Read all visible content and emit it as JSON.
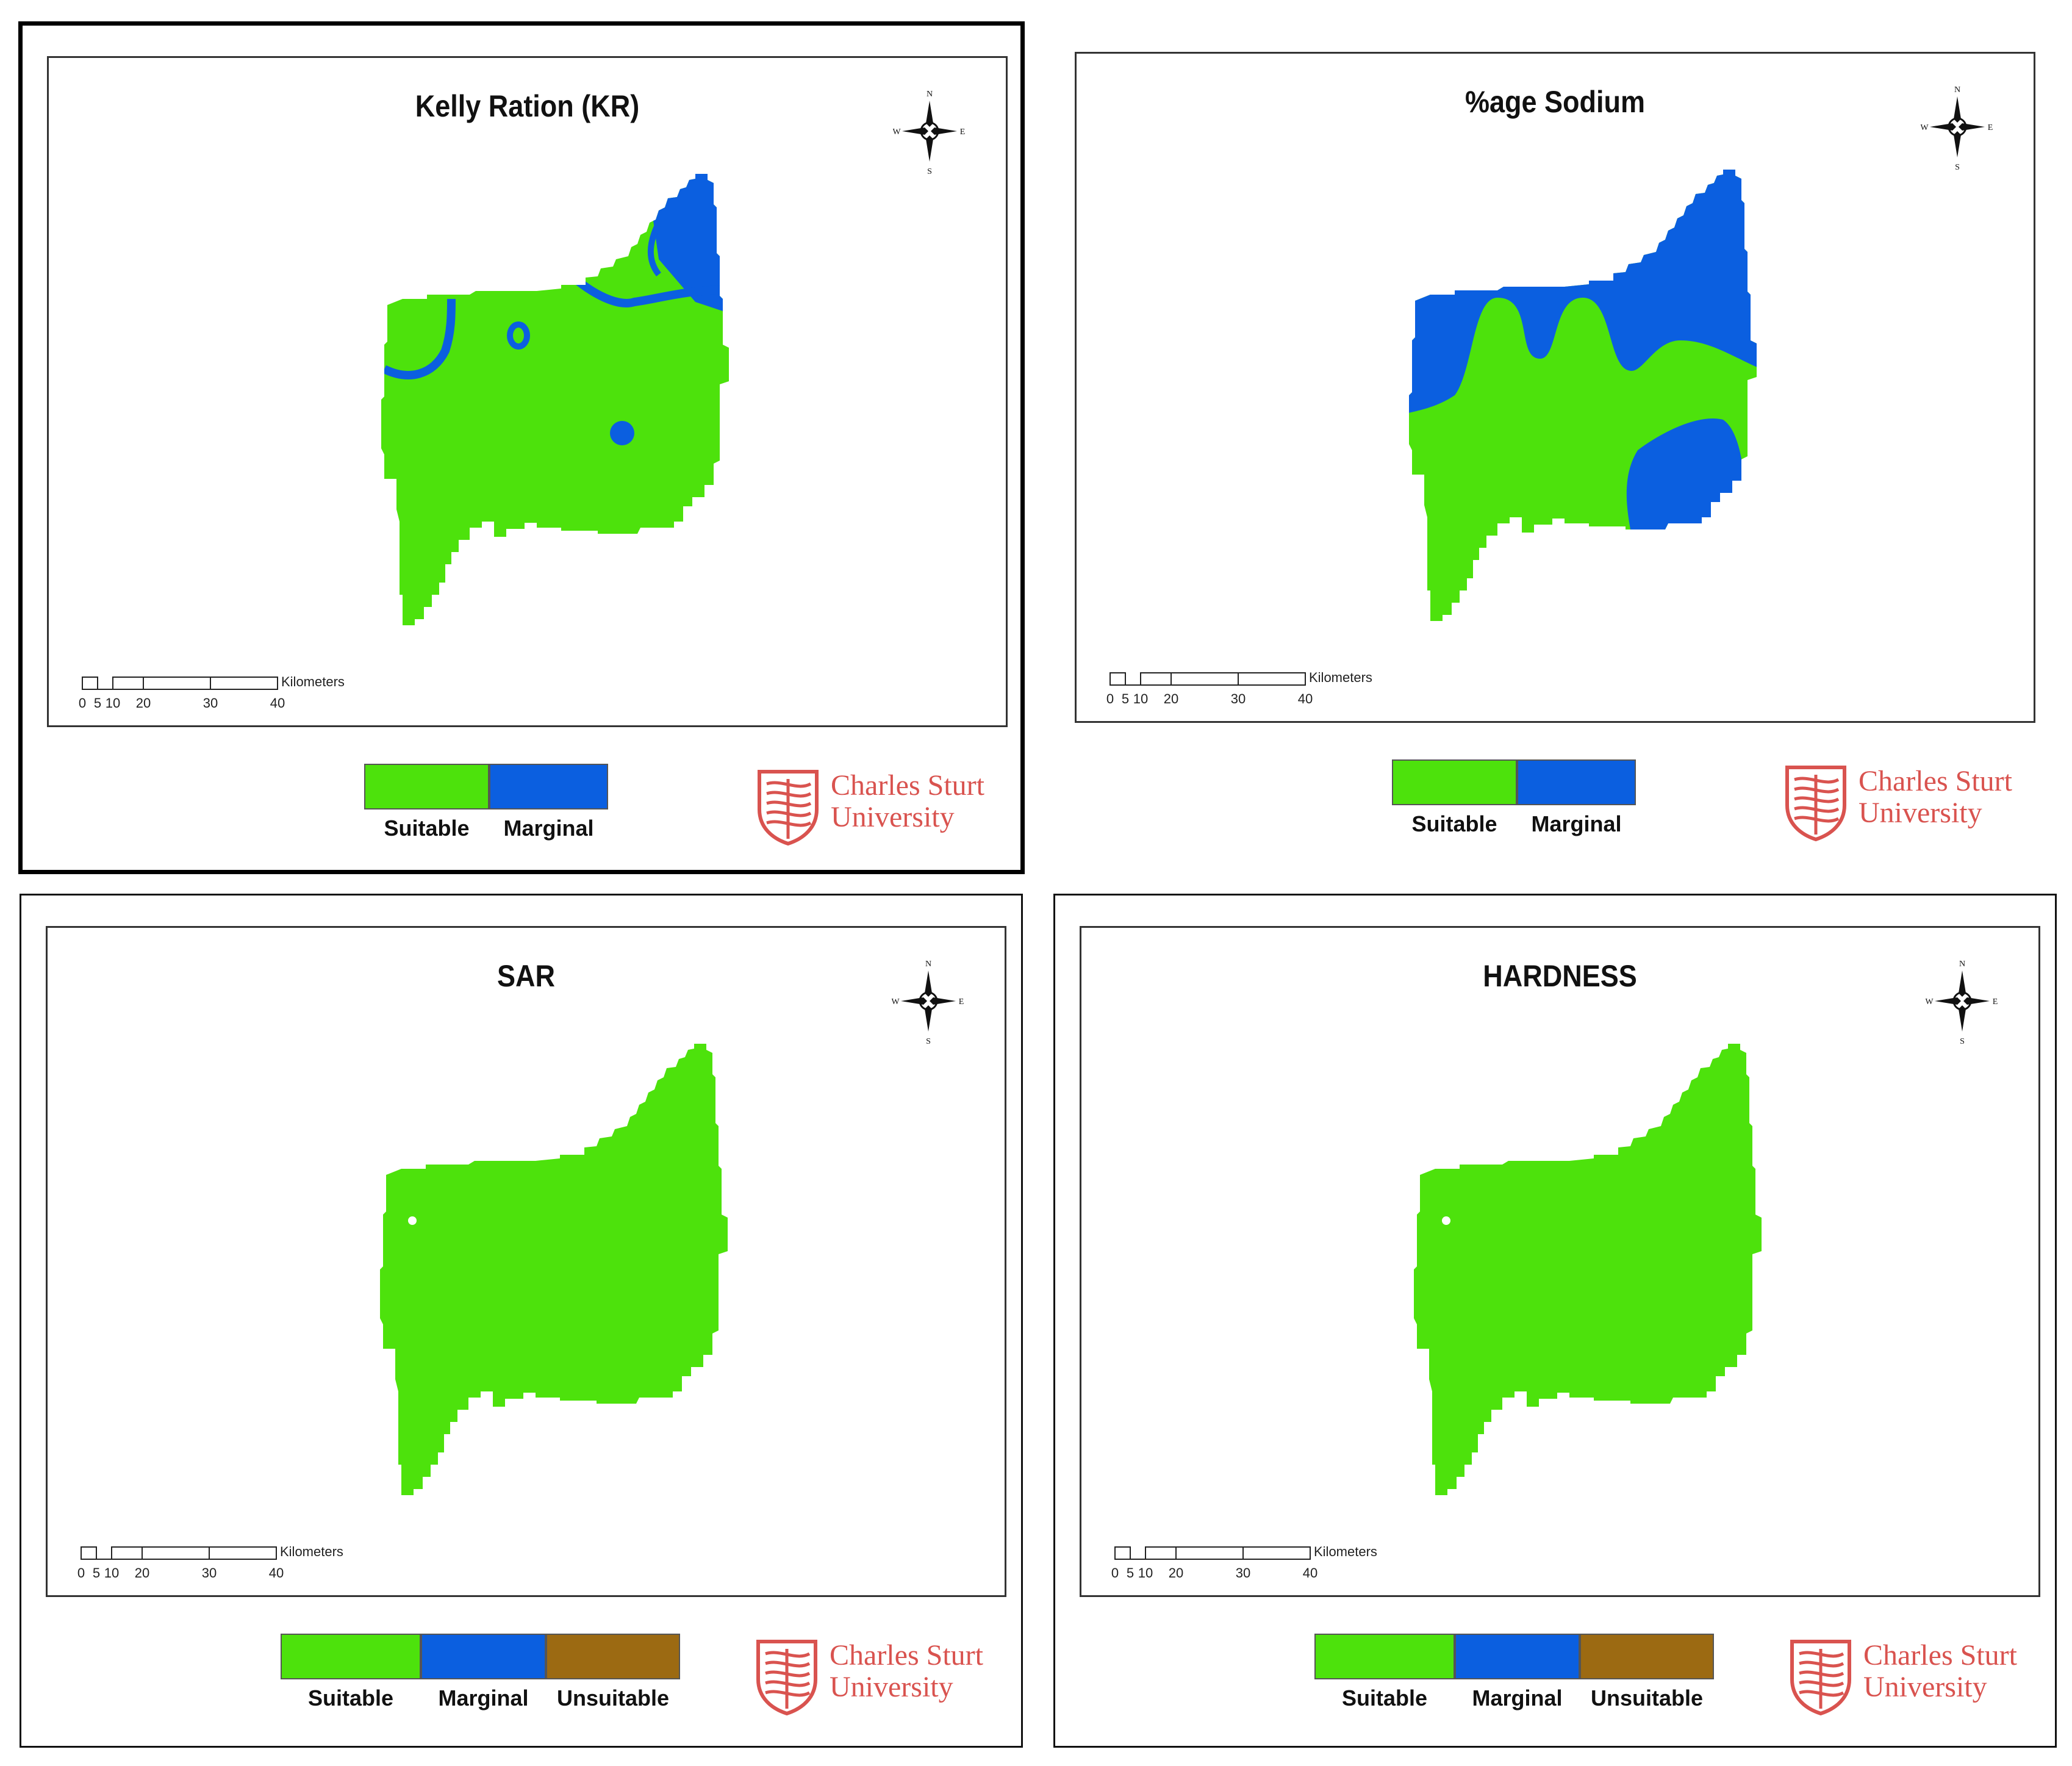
{
  "panels": [
    {
      "title": "Kelly Ration (KR)",
      "variant": "kr",
      "legend": [
        {
          "label": "Suitable",
          "color": "#4de20c"
        },
        {
          "label": "Marginal",
          "color": "#0b5fe0"
        }
      ]
    },
    {
      "title": "%age Sodium",
      "variant": "na",
      "legend": [
        {
          "label": "Suitable",
          "color": "#4de20c"
        },
        {
          "label": "Marginal",
          "color": "#0b5fe0"
        }
      ]
    },
    {
      "title": "SAR",
      "variant": "plain",
      "legend": [
        {
          "label": "Suitable",
          "color": "#4de20c"
        },
        {
          "label": "Marginal",
          "color": "#0b5fe0"
        },
        {
          "label": "Unsuitable",
          "color": "#9c6a12"
        }
      ]
    },
    {
      "title": "HARDNESS",
      "variant": "plain",
      "legend": [
        {
          "label": "Suitable",
          "color": "#4de20c"
        },
        {
          "label": "Marginal",
          "color": "#0b5fe0"
        },
        {
          "label": "Unsuitable",
          "color": "#9c6a12"
        }
      ]
    }
  ],
  "compass": {
    "n": "N",
    "s": "S",
    "e": "E",
    "w": "W"
  },
  "scale": {
    "unit": "Kilometers",
    "ticks": [
      "0",
      "5",
      "10",
      "20",
      "30",
      "40"
    ]
  },
  "logo": {
    "line1": "Charles Sturt",
    "line2": "University",
    "color": "#d9534f"
  },
  "colors": {
    "suitable": "#4de20c",
    "marginal": "#0b5fe0",
    "unsuitable": "#9c6a12"
  }
}
